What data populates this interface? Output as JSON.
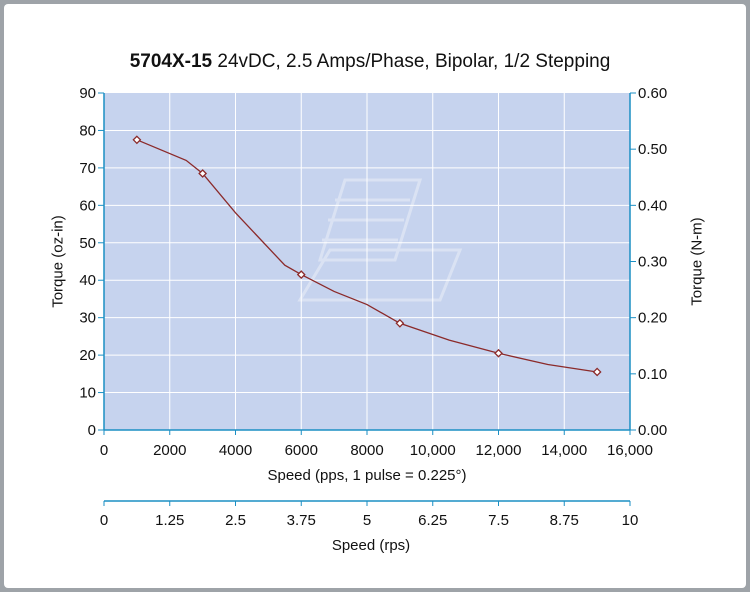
{
  "chart_data": {
    "type": "line",
    "title_bold": "5704X-15",
    "title_rest": " 24vDC, 2.5 Amps/Phase, Bipolar, 1/2 Stepping",
    "xlabel": "Speed (pps, 1 pulse = 0.225°)",
    "ylabel": "Torque (oz-in)",
    "y2label": "Torque (N-m)",
    "x2label": "Speed (rps)",
    "xlim": [
      0,
      16000
    ],
    "ylim": [
      0,
      90
    ],
    "y2lim": [
      0,
      0.6
    ],
    "x2lim": [
      0,
      10
    ],
    "x_ticks": [
      "0",
      "2000",
      "4000",
      "6000",
      "8000",
      "10,000",
      "12,000",
      "14,000",
      "16,000"
    ],
    "y_ticks": [
      "0",
      "10",
      "20",
      "30",
      "40",
      "50",
      "60",
      "70",
      "80",
      "90"
    ],
    "y2_ticks": [
      "0.00",
      "0.10",
      "0.20",
      "0.30",
      "0.40",
      "0.50",
      "0.60"
    ],
    "x2_ticks": [
      "0",
      "1.25",
      "2.5",
      "3.75",
      "5",
      "6.25",
      "7.5",
      "8.75",
      "10"
    ],
    "series": [
      {
        "name": "Torque",
        "x": [
          1000,
          2500,
          3000,
          4000,
          5500,
          6000,
          7000,
          8000,
          9000,
          10500,
          12000,
          13500,
          15000
        ],
        "y": [
          77.5,
          72,
          68.5,
          58,
          44,
          41.5,
          37,
          33.5,
          28.5,
          24,
          20.5,
          17.5,
          15.5
        ]
      }
    ],
    "markers": {
      "x": [
        1000,
        3000,
        6000,
        9000,
        12000,
        15000
      ],
      "y": [
        77.5,
        68.5,
        41.5,
        28.5,
        20.5,
        15.5
      ]
    },
    "colors": {
      "plot_bg": "#c6d3ee",
      "grid": "#ffffff",
      "axis": "#1b8fc4",
      "line": "#8b2a2a"
    }
  }
}
